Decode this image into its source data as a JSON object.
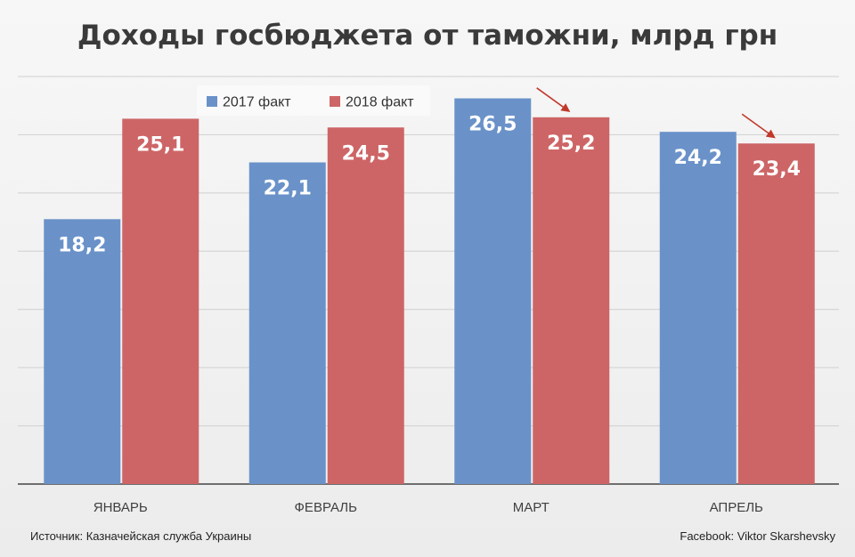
{
  "chart_data": {
    "type": "bar",
    "title": "Доходы госбюджета от таможни, млрд грн",
    "categories": [
      "ЯНВАРЬ",
      "ФЕВРАЛЬ",
      "МАРТ",
      "АПРЕЛЬ"
    ],
    "series": [
      {
        "name": "2017 факт",
        "values": [
          18.2,
          22.1,
          26.5,
          24.2
        ],
        "labels": [
          "18,2",
          "22,1",
          "26,5",
          "24,2"
        ],
        "color": "#6a92c9"
      },
      {
        "name": "2018 факт",
        "values": [
          25.1,
          24.5,
          25.2,
          23.4
        ],
        "labels": [
          "25,1",
          "24,5",
          "25,2",
          "23,4"
        ],
        "color": "#cd6566"
      }
    ],
    "ylim": [
      0,
      28
    ],
    "grid": true,
    "legend_position": "top",
    "arrow_color": "#c0392b",
    "annotations": [
      "decrease-arrow-march",
      "decrease-arrow-april"
    ]
  },
  "footer": {
    "source": "Источник: Казначейская служба Украины",
    "credit": "Facebook: Viktor Skarshevsky"
  }
}
